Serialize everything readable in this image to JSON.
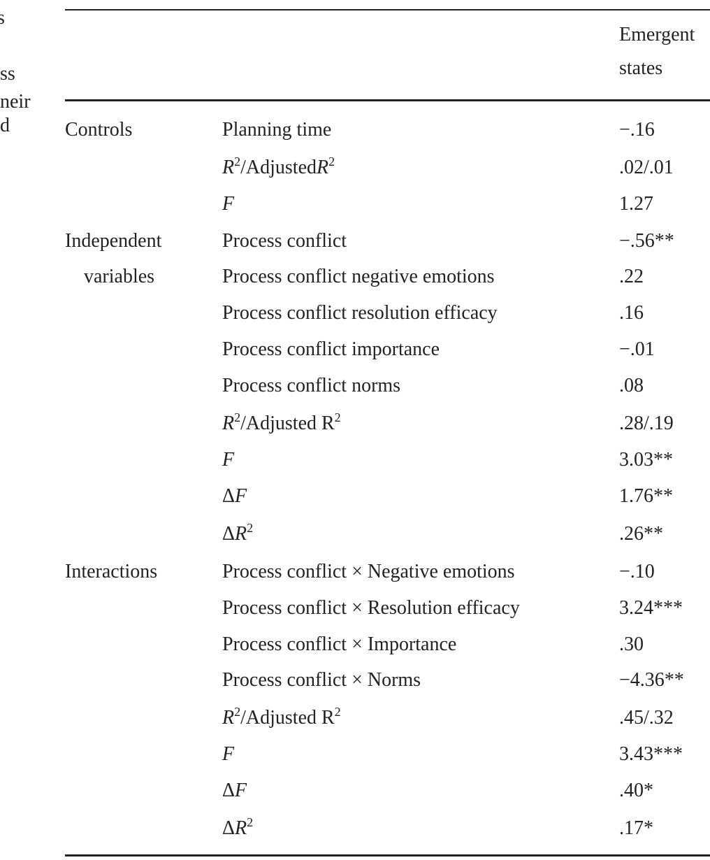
{
  "margin_fragments": [
    "s",
    "ss",
    "neir",
    "d"
  ],
  "header": {
    "column": [
      "Emergent",
      "states"
    ]
  },
  "rows": [
    {
      "group": "Controls",
      "var": "Planning time",
      "value": "−.16"
    },
    {
      "group": "",
      "var": "R²/AdjustedR²",
      "value": ".02/.01"
    },
    {
      "group": "",
      "var": "F",
      "value": "1.27"
    },
    {
      "group": "Independent",
      "var": "Process conflict",
      "value": "−.56**"
    },
    {
      "group": "variables",
      "var": "Process conflict negative emotions",
      "value": ".22"
    },
    {
      "group": "",
      "var": "Process conflict resolution efficacy",
      "value": ".16"
    },
    {
      "group": "",
      "var": "Process conflict importance",
      "value": "−.01"
    },
    {
      "group": "",
      "var": "Process conflict norms",
      "value": ".08"
    },
    {
      "group": "",
      "var": "R²/Adjusted R²",
      "value": ".28/.19"
    },
    {
      "group": "",
      "var": "F",
      "value": "3.03**"
    },
    {
      "group": "",
      "var": "ΔF",
      "value": "1.76**"
    },
    {
      "group": "",
      "var": "ΔR²",
      "value": ".26**"
    },
    {
      "group": "Interactions",
      "var": "Process conflict × Negative emotions",
      "value": "−.10"
    },
    {
      "group": "",
      "var": "Process conflict × Resolution efficacy",
      "value": "3.24***"
    },
    {
      "group": "",
      "var": "Process conflict × Importance",
      "value": ".30"
    },
    {
      "group": "",
      "var": "Process conflict × Norms",
      "value": "−4.36**"
    },
    {
      "group": "",
      "var": "R²/Adjusted R²",
      "value": ".45/.32"
    },
    {
      "group": "",
      "var": "F",
      "value": "3.43***"
    },
    {
      "group": "",
      "var": "ΔF",
      "value": ".40*"
    },
    {
      "group": "",
      "var": "ΔR²",
      "value": ".17*"
    }
  ]
}
